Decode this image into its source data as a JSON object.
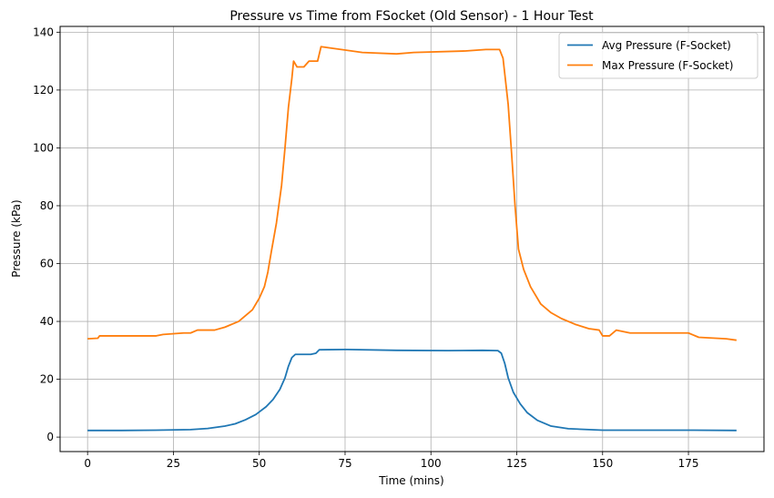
{
  "chart_data": {
    "type": "line",
    "title": "Pressure vs Time from FSocket (Old Sensor) - 1 Hour Test",
    "xlabel": "Time (mins)",
    "ylabel": "Pressure (kPa)",
    "xlim": [
      -8,
      197
    ],
    "ylim": [
      -5,
      142
    ],
    "xticks": [
      0,
      25,
      50,
      75,
      100,
      125,
      150,
      175
    ],
    "yticks": [
      0,
      20,
      40,
      60,
      80,
      100,
      120,
      140
    ],
    "grid": true,
    "legend_position": "top-right",
    "series": [
      {
        "name": "Avg Pressure (F-Socket)",
        "color": "#1f77b4",
        "points": [
          [
            0,
            2.3
          ],
          [
            10,
            2.3
          ],
          [
            20,
            2.4
          ],
          [
            30,
            2.6
          ],
          [
            35,
            3.0
          ],
          [
            40,
            3.8
          ],
          [
            43,
            4.6
          ],
          [
            46,
            6.0
          ],
          [
            49,
            7.8
          ],
          [
            52,
            10.5
          ],
          [
            54,
            13.0
          ],
          [
            56,
            16.5
          ],
          [
            57.5,
            20.5
          ],
          [
            58.5,
            24.5
          ],
          [
            59.5,
            27.5
          ],
          [
            60.5,
            28.6
          ],
          [
            65,
            28.6
          ],
          [
            66.5,
            29.0
          ],
          [
            67.5,
            30.2
          ],
          [
            75,
            30.3
          ],
          [
            90,
            30.0
          ],
          [
            105,
            29.9
          ],
          [
            115,
            30.0
          ],
          [
            119.5,
            29.9
          ],
          [
            120.5,
            29.0
          ],
          [
            121.5,
            25.5
          ],
          [
            122.5,
            20.5
          ],
          [
            124,
            15.5
          ],
          [
            126,
            11.5
          ],
          [
            128,
            8.5
          ],
          [
            131,
            5.8
          ],
          [
            135,
            3.8
          ],
          [
            140,
            2.9
          ],
          [
            150,
            2.4
          ],
          [
            160,
            2.4
          ],
          [
            175,
            2.4
          ],
          [
            189,
            2.3
          ]
        ]
      },
      {
        "name": "Max Pressure (F-Socket)",
        "color": "#ff7f0e",
        "points": [
          [
            0,
            34.0
          ],
          [
            3,
            34.2
          ],
          [
            3.5,
            35.0
          ],
          [
            20,
            35.0
          ],
          [
            22,
            35.5
          ],
          [
            28,
            36.0
          ],
          [
            30,
            36.0
          ],
          [
            32,
            37.0
          ],
          [
            37,
            37.0
          ],
          [
            40,
            38.0
          ],
          [
            44,
            40.0
          ],
          [
            48,
            44.0
          ],
          [
            50,
            48.0
          ],
          [
            51.5,
            52.0
          ],
          [
            52.5,
            57.0
          ],
          [
            53.5,
            64.0
          ],
          [
            55,
            74.0
          ],
          [
            56.5,
            87.0
          ],
          [
            57.5,
            100.0
          ],
          [
            58.5,
            114.0
          ],
          [
            59.5,
            124.0
          ],
          [
            60,
            130.0
          ],
          [
            61,
            128.0
          ],
          [
            63,
            128.0
          ],
          [
            64.5,
            130.0
          ],
          [
            67,
            130.0
          ],
          [
            68,
            135.0
          ],
          [
            71,
            134.5
          ],
          [
            80,
            133.0
          ],
          [
            90,
            132.5
          ],
          [
            95,
            133.0
          ],
          [
            110,
            133.5
          ],
          [
            116,
            134.0
          ],
          [
            120,
            134.0
          ],
          [
            121,
            131.0
          ],
          [
            122.5,
            115.0
          ],
          [
            123.5,
            98.0
          ],
          [
            124.5,
            80.0
          ],
          [
            125.5,
            65.0
          ],
          [
            127,
            58.0
          ],
          [
            129,
            52.0
          ],
          [
            132,
            46.0
          ],
          [
            135,
            43.0
          ],
          [
            138,
            41.0
          ],
          [
            142,
            39.0
          ],
          [
            146,
            37.5
          ],
          [
            149,
            37.0
          ],
          [
            150,
            35.0
          ],
          [
            152,
            35.0
          ],
          [
            154,
            37.0
          ],
          [
            158,
            36.0
          ],
          [
            175,
            36.0
          ],
          [
            178,
            34.5
          ],
          [
            186,
            34.0
          ],
          [
            189,
            33.5
          ]
        ]
      }
    ]
  }
}
